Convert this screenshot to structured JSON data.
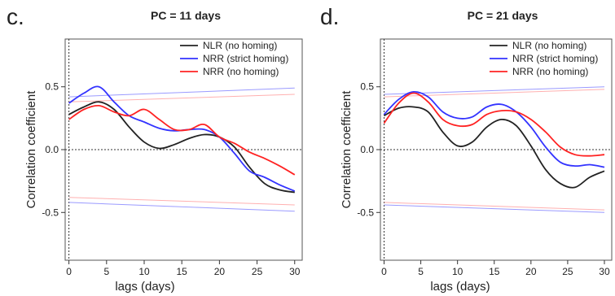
{
  "colors": {
    "NLR_no_homing": "#222222",
    "NRR_strict_homing": "#3333ff",
    "NRR_no_homing": "#ff2222",
    "threshold_blue": "#9a9aff",
    "threshold_red": "#ffb0b0"
  },
  "chart_data": [
    {
      "type": "line",
      "panel_letter": "c.",
      "title": "PC = 11 days",
      "xlabel": "lags (days)",
      "ylabel": "Correlation coefficient",
      "xlim": [
        -0.5,
        31
      ],
      "ylim": [
        -0.88,
        0.88
      ],
      "xticks": [
        0,
        5,
        10,
        15,
        20,
        25,
        30
      ],
      "yticks": [
        -0.5,
        0.0,
        0.5
      ],
      "ytick_labels": [
        "-0.5",
        "0.0",
        "0.5"
      ],
      "grid": false,
      "reference_lines": {
        "h": 0.0,
        "v": 0
      },
      "legend_position": "top-right",
      "x": [
        0,
        2,
        4,
        6,
        8,
        10,
        12,
        14,
        16,
        18,
        20,
        22,
        24,
        26,
        28,
        30
      ],
      "series": [
        {
          "name": "NLR (no homing)",
          "color_key": "NLR_no_homing",
          "values": [
            0.28,
            0.34,
            0.38,
            0.32,
            0.18,
            0.06,
            0.01,
            0.04,
            0.09,
            0.12,
            0.1,
            0.02,
            -0.14,
            -0.27,
            -0.32,
            -0.34
          ]
        },
        {
          "name": "NRR (strict homing)",
          "color_key": "NRR_strict_homing",
          "values": [
            0.37,
            0.45,
            0.5,
            0.38,
            0.27,
            0.22,
            0.17,
            0.15,
            0.16,
            0.16,
            0.1,
            -0.03,
            -0.17,
            -0.22,
            -0.28,
            -0.33
          ]
        },
        {
          "name": "NRR (no homing)",
          "color_key": "NRR_no_homing",
          "values": [
            0.24,
            0.32,
            0.35,
            0.3,
            0.27,
            0.32,
            0.24,
            0.16,
            0.16,
            0.2,
            0.1,
            0.05,
            -0.02,
            -0.07,
            -0.13,
            -0.2
          ]
        }
      ],
      "thresholds": [
        {
          "color_key": "threshold_blue",
          "from": [
            0,
            0.42
          ],
          "to": [
            30,
            0.49
          ]
        },
        {
          "color_key": "threshold_red",
          "from": [
            0,
            0.38
          ],
          "to": [
            30,
            0.44
          ]
        },
        {
          "color_key": "threshold_red",
          "from": [
            0,
            -0.38
          ],
          "to": [
            30,
            -0.44
          ]
        },
        {
          "color_key": "threshold_blue",
          "from": [
            0,
            -0.42
          ],
          "to": [
            30,
            -0.49
          ]
        }
      ]
    },
    {
      "type": "line",
      "panel_letter": "d.",
      "title": "PC = 21 days",
      "xlabel": "lags (days)",
      "ylabel": "Correlation coefficient",
      "xlim": [
        -0.5,
        31
      ],
      "ylim": [
        -0.88,
        0.88
      ],
      "xticks": [
        0,
        5,
        10,
        15,
        20,
        25,
        30
      ],
      "yticks": [
        -0.5,
        0.0,
        0.5
      ],
      "ytick_labels": [
        "-0.5",
        "0.0",
        "0.5"
      ],
      "grid": false,
      "reference_lines": {
        "h": 0.0,
        "v": 0
      },
      "legend_position": "top-right",
      "x": [
        0,
        2,
        4,
        6,
        8,
        10,
        12,
        14,
        16,
        18,
        20,
        22,
        24,
        26,
        28,
        30
      ],
      "series": [
        {
          "name": "NLR (no homing)",
          "color_key": "NLR_no_homing",
          "values": [
            0.27,
            0.33,
            0.34,
            0.3,
            0.14,
            0.03,
            0.06,
            0.18,
            0.24,
            0.19,
            0.03,
            -0.16,
            -0.27,
            -0.3,
            -0.22,
            -0.17
          ]
        },
        {
          "name": "NRR (strict homing)",
          "color_key": "NRR_strict_homing",
          "values": [
            0.28,
            0.4,
            0.46,
            0.42,
            0.3,
            0.25,
            0.26,
            0.34,
            0.36,
            0.3,
            0.18,
            0.02,
            -0.1,
            -0.13,
            -0.12,
            -0.14
          ]
        },
        {
          "name": "NRR (no homing)",
          "color_key": "NRR_no_homing",
          "values": [
            0.21,
            0.37,
            0.45,
            0.38,
            0.24,
            0.19,
            0.2,
            0.28,
            0.31,
            0.3,
            0.24,
            0.14,
            0.02,
            -0.04,
            -0.05,
            -0.04
          ]
        }
      ],
      "thresholds": [
        {
          "color_key": "threshold_blue",
          "from": [
            0,
            0.44
          ],
          "to": [
            30,
            0.5
          ]
        },
        {
          "color_key": "threshold_red",
          "from": [
            0,
            0.42
          ],
          "to": [
            30,
            0.48
          ]
        },
        {
          "color_key": "threshold_red",
          "from": [
            0,
            -0.42
          ],
          "to": [
            30,
            -0.48
          ]
        },
        {
          "color_key": "threshold_blue",
          "from": [
            0,
            -0.44
          ],
          "to": [
            30,
            -0.5
          ]
        }
      ]
    }
  ]
}
